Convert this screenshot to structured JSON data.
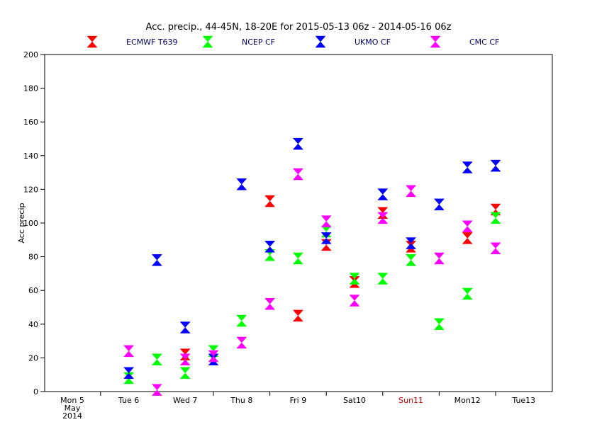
{
  "chart_data": {
    "type": "scatter",
    "title": "Acc. precip.,  44-45N, 18-20E for 2015-05-13 06z - 2014-05-16 06z",
    "ylabel": "Acc precip",
    "xlabel": "",
    "ylim": [
      0,
      200
    ],
    "yticks": [
      0,
      20,
      40,
      60,
      80,
      100,
      120,
      140,
      160,
      180,
      200
    ],
    "grid": false,
    "legend_position": "top",
    "categories": [
      {
        "lines": [
          "Mon 5",
          "May",
          "2014"
        ],
        "color": "#000000"
      },
      {
        "lines": [
          "Tue 6"
        ],
        "color": "#000000"
      },
      {
        "lines": [
          "Wed 7"
        ],
        "color": "#000000"
      },
      {
        "lines": [
          "Thu 8"
        ],
        "color": "#000000"
      },
      {
        "lines": [
          "Fri 9"
        ],
        "color": "#000000"
      },
      {
        "lines": [
          "Sat10"
        ],
        "color": "#000000"
      },
      {
        "lines": [
          "Sun11"
        ],
        "color": "#cc0000"
      },
      {
        "lines": [
          "Mon12"
        ],
        "color": "#000000"
      },
      {
        "lines": [
          "Tue13"
        ],
        "color": "#000000"
      }
    ],
    "x_unit": "day index from Mon 5 May 2014",
    "series": [
      {
        "name": "ECMWF T639",
        "color": "#ff0000",
        "points": [
          [
            2.0,
            22
          ],
          [
            3.5,
            113
          ],
          [
            4.0,
            45
          ],
          [
            4.5,
            87
          ],
          [
            5.0,
            65
          ],
          [
            5.5,
            106
          ],
          [
            6.0,
            86
          ],
          [
            7.0,
            91
          ],
          [
            7.5,
            108
          ]
        ]
      },
      {
        "name": "NCEP CF",
        "color": "#00ff00",
        "points": [
          [
            1.0,
            8
          ],
          [
            1.5,
            19
          ],
          [
            2.0,
            11
          ],
          [
            2.5,
            24
          ],
          [
            3.0,
            42
          ],
          [
            3.5,
            81
          ],
          [
            4.0,
            79
          ],
          [
            4.5,
            95
          ],
          [
            5.0,
            67
          ],
          [
            5.5,
            67
          ],
          [
            6.0,
            78
          ],
          [
            6.5,
            40
          ],
          [
            7.0,
            58
          ],
          [
            7.5,
            103
          ]
        ]
      },
      {
        "name": "UKMO CF",
        "color": "#0000ff",
        "points": [
          [
            1.0,
            11
          ],
          [
            1.5,
            78
          ],
          [
            2.0,
            38
          ],
          [
            2.5,
            19
          ],
          [
            3.0,
            123
          ],
          [
            3.5,
            86
          ],
          [
            4.0,
            147
          ],
          [
            4.5,
            91
          ],
          [
            5.5,
            117
          ],
          [
            6.0,
            88
          ],
          [
            6.5,
            111
          ],
          [
            7.0,
            133
          ],
          [
            7.5,
            134
          ]
        ]
      },
      {
        "name": "CMC CF",
        "color": "#ff00ff",
        "points": [
          [
            1.0,
            24
          ],
          [
            1.5,
            1
          ],
          [
            2.0,
            19
          ],
          [
            2.5,
            21
          ],
          [
            3.0,
            29
          ],
          [
            3.5,
            52
          ],
          [
            4.0,
            129
          ],
          [
            4.5,
            101
          ],
          [
            5.0,
            54
          ],
          [
            5.5,
            103
          ],
          [
            6.0,
            119
          ],
          [
            6.5,
            79
          ],
          [
            7.0,
            98
          ],
          [
            7.5,
            85
          ]
        ]
      }
    ]
  }
}
